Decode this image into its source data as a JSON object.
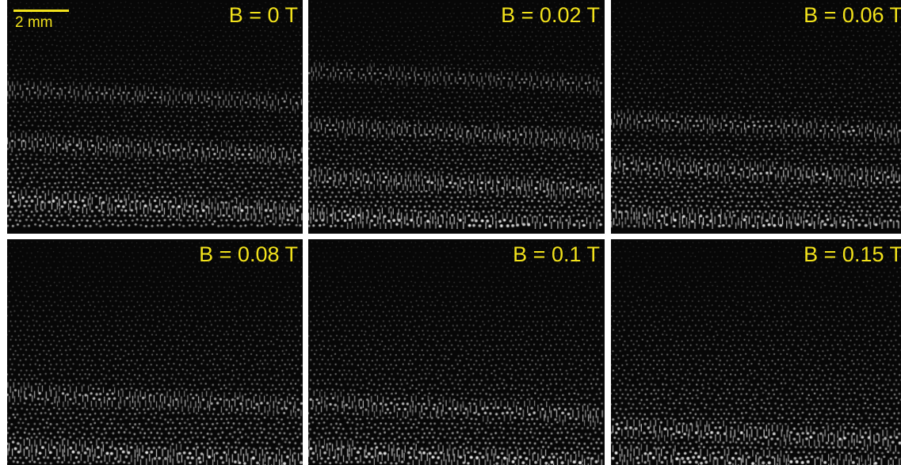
{
  "colors": {
    "annotation": "#f2e21b",
    "dot": "#e8e8e8",
    "background": "#070707",
    "divider": "#ffffff"
  },
  "scale_bar": {
    "label": "2 mm"
  },
  "panels": [
    {
      "label": "B = 0 T",
      "bands": [
        0.42,
        0.65,
        0.9
      ]
    },
    {
      "label": "B = 0.02 T",
      "bands": [
        0.34,
        0.58,
        0.8,
        0.97
      ]
    },
    {
      "label": "B = 0.06 T",
      "bands": [
        0.55,
        0.75,
        0.97
      ]
    },
    {
      "label": "B = 0.08 T",
      "bands": [
        0.7,
        0.94
      ]
    },
    {
      "label": "B = 0.1 T",
      "bands": [
        0.74,
        0.95
      ]
    },
    {
      "label": "B = 0.15 T",
      "bands": [
        0.85,
        0.97
      ]
    }
  ]
}
